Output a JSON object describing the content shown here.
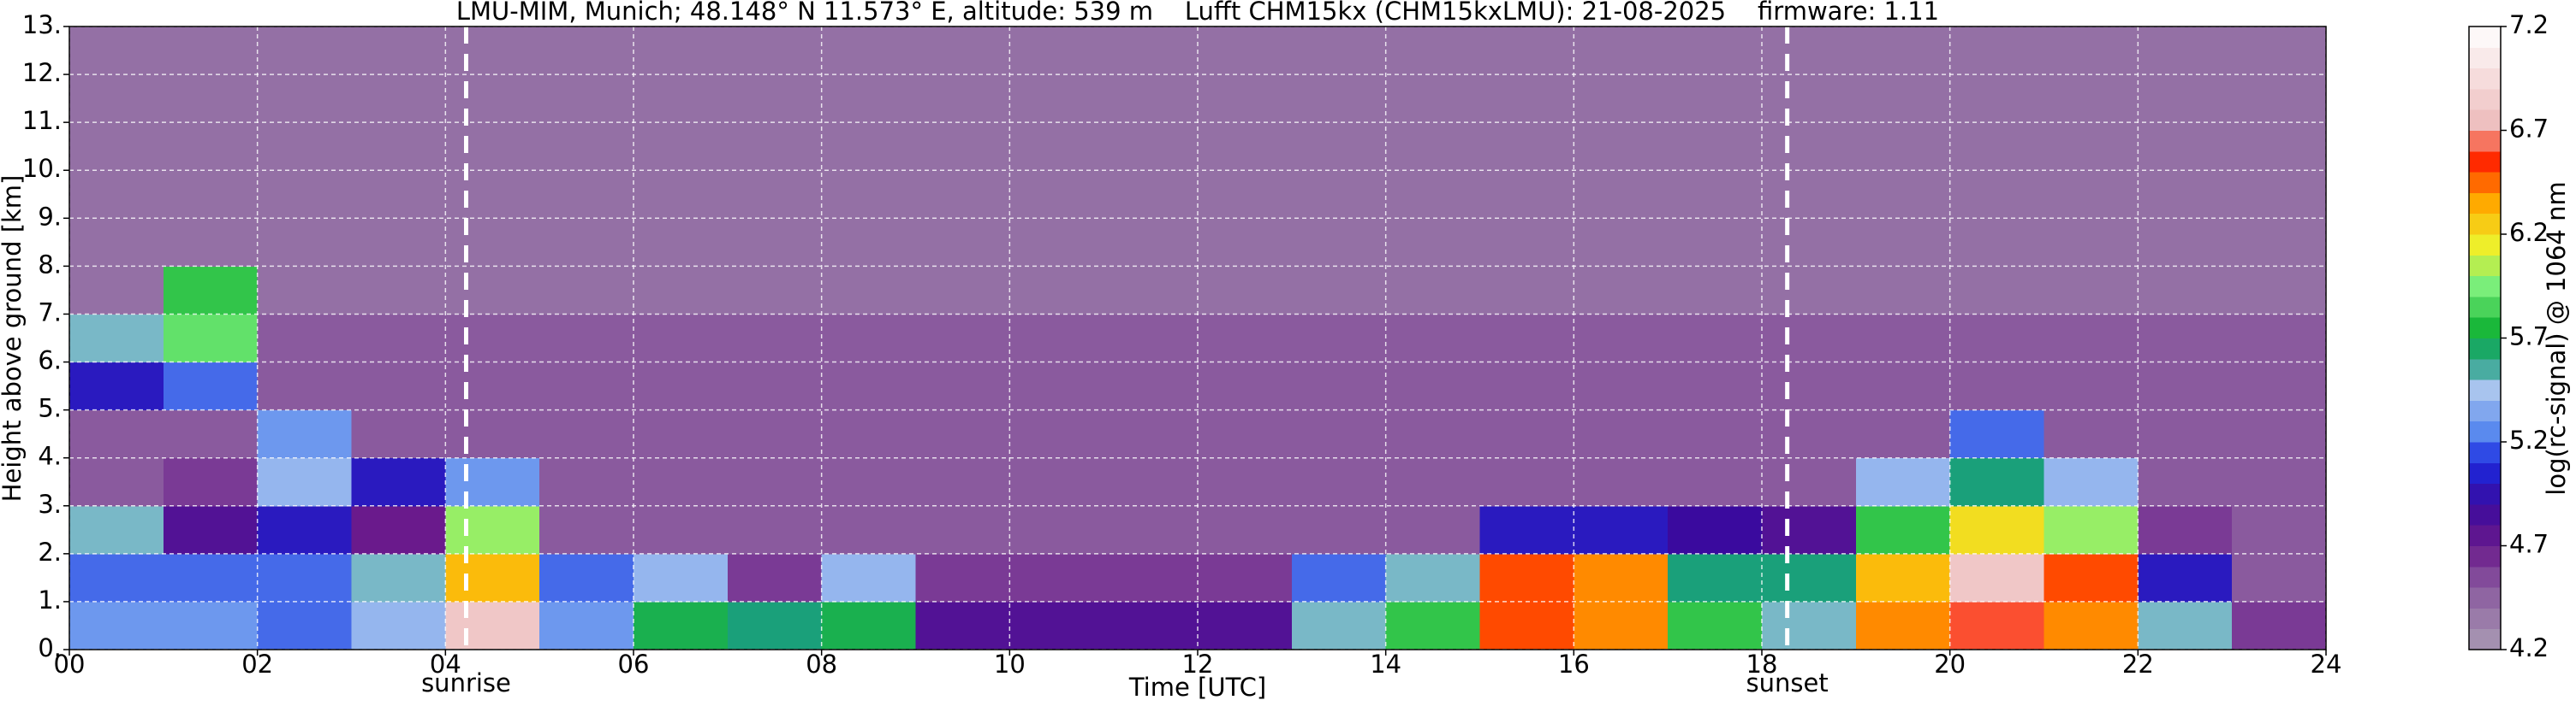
{
  "chart_data": {
    "type": "heatmap",
    "title": "LMU-MIM, Munich; 48.148° N 11.573° E, altitude: 539 m    Lufft CHM15kx (CHM15kxLMU): 21-08-2025    firmware: 1.11",
    "x_label": "Time [UTC]",
    "y_label": "Height above ground [km]",
    "colorbar_label": "log(rc-signal) @ 1064 nm",
    "xlim": [
      0,
      24
    ],
    "ylim": [
      0,
      13
    ],
    "zlim": [
      4.2,
      7.2
    ],
    "xticks": [
      {
        "value": 0,
        "label": "00"
      },
      {
        "value": 2,
        "label": "02"
      },
      {
        "value": 4,
        "label": "04"
      },
      {
        "value": 6,
        "label": "06"
      },
      {
        "value": 8,
        "label": "08"
      },
      10,
      12,
      14,
      16,
      18,
      20,
      22,
      24
    ],
    "yticks": [
      {
        "value": 0,
        "label": "0."
      },
      {
        "value": 1,
        "label": "1."
      },
      {
        "value": 2,
        "label": "2."
      },
      {
        "value": 3,
        "label": "3."
      },
      {
        "value": 4,
        "label": "4."
      },
      {
        "value": 5,
        "label": "5."
      },
      {
        "value": 6,
        "label": "6."
      },
      {
        "value": 7,
        "label": "7."
      },
      {
        "value": 8,
        "label": "8."
      },
      {
        "value": 9,
        "label": "9."
      },
      {
        "value": 10,
        "label": "10."
      },
      {
        "value": 11,
        "label": "11."
      },
      {
        "value": 12,
        "label": "12."
      },
      {
        "value": 13,
        "label": "13."
      }
    ],
    "zticks": [
      4.2,
      4.7,
      5.2,
      5.7,
      6.2,
      6.7,
      7.2
    ],
    "grid": true,
    "colorscale": [
      [
        4.2,
        "#a99bb3"
      ],
      [
        4.5,
        "#8a5a9e"
      ],
      [
        4.7,
        "#6a1a8c"
      ],
      [
        4.9,
        "#3a0a9e"
      ],
      [
        5.1,
        "#1a2ae0"
      ],
      [
        5.25,
        "#5a8aee"
      ],
      [
        5.45,
        "#a8c4ee"
      ],
      [
        5.6,
        "#1aa07a"
      ],
      [
        5.75,
        "#1ab83a"
      ],
      [
        5.95,
        "#7aee7a"
      ],
      [
        6.15,
        "#eeee2a"
      ],
      [
        6.35,
        "#ffaa00"
      ],
      [
        6.55,
        "#ff2a00"
      ],
      [
        6.75,
        "#eec0c0"
      ],
      [
        7.2,
        "#ffffff"
      ]
    ],
    "annotations": [
      {
        "text": "sunrise",
        "x": 4.22
      },
      {
        "text": "sunset",
        "x": 18.27
      }
    ],
    "z": [
      [
        5.3,
        5.3,
        5.2,
        5.4,
        6.8,
        5.3,
        5.7,
        5.6,
        5.7,
        4.8,
        4.8,
        4.8,
        4.8,
        5.5,
        5.8,
        6.5,
        6.4,
        5.8,
        5.5,
        6.4,
        6.6,
        6.4,
        5.5,
        4.6
      ],
      [
        5.2,
        5.2,
        5.2,
        5.5,
        6.3,
        5.2,
        5.4,
        4.6,
        5.4,
        4.6,
        4.6,
        4.6,
        4.6,
        5.2,
        5.5,
        6.5,
        6.4,
        5.6,
        5.6,
        6.3,
        6.8,
        6.5,
        5.0,
        4.5
      ],
      [
        5.5,
        4.8,
        5.0,
        4.7,
        6.0,
        4.5,
        4.5,
        4.5,
        4.5,
        4.5,
        4.5,
        4.5,
        4.5,
        4.5,
        4.5,
        5.0,
        5.0,
        4.9,
        4.8,
        5.8,
        6.2,
        6.0,
        4.6,
        4.5
      ],
      [
        4.5,
        4.6,
        5.4,
        5.0,
        5.3,
        4.5,
        4.5,
        4.5,
        4.5,
        4.5,
        4.5,
        4.5,
        4.5,
        4.5,
        4.5,
        4.5,
        4.5,
        4.5,
        4.5,
        5.4,
        5.6,
        5.4,
        4.5,
        4.5
      ],
      [
        4.5,
        4.5,
        5.3,
        4.5,
        4.5,
        4.5,
        4.5,
        4.5,
        4.5,
        4.5,
        4.5,
        4.5,
        4.5,
        4.5,
        4.5,
        4.5,
        4.5,
        4.5,
        4.5,
        4.5,
        5.2,
        4.5,
        4.5,
        4.5
      ],
      [
        5.0,
        5.2,
        4.5,
        4.5,
        4.5,
        4.5,
        4.5,
        4.5,
        4.5,
        4.5,
        4.5,
        4.5,
        4.5,
        4.5,
        4.5,
        4.5,
        4.5,
        4.5,
        4.5,
        4.5,
        4.5,
        4.5,
        4.5,
        4.5
      ],
      [
        5.5,
        5.9,
        4.5,
        4.5,
        4.5,
        4.5,
        4.5,
        4.5,
        4.5,
        4.5,
        4.5,
        4.5,
        4.5,
        4.5,
        4.5,
        4.5,
        4.5,
        4.5,
        4.5,
        4.5,
        4.5,
        4.5,
        4.5,
        4.5
      ],
      [
        4.4,
        5.8,
        4.4,
        4.4,
        4.4,
        4.4,
        4.4,
        4.4,
        4.4,
        4.4,
        4.4,
        4.4,
        4.4,
        4.4,
        4.4,
        4.4,
        4.4,
        4.4,
        4.4,
        4.4,
        4.4,
        4.4,
        4.4,
        4.4
      ],
      [
        4.4,
        4.4,
        4.4,
        4.4,
        4.4,
        4.4,
        4.4,
        4.4,
        4.4,
        4.4,
        4.4,
        4.4,
        4.4,
        4.4,
        4.4,
        4.4,
        4.4,
        4.4,
        4.4,
        4.4,
        4.4,
        4.4,
        4.4,
        4.4
      ],
      [
        4.4,
        4.4,
        4.4,
        4.4,
        4.4,
        4.4,
        4.4,
        4.4,
        4.4,
        4.4,
        4.4,
        4.4,
        4.4,
        4.4,
        4.4,
        4.4,
        4.4,
        4.4,
        4.4,
        4.4,
        4.4,
        4.4,
        4.4,
        4.4
      ],
      [
        4.4,
        4.4,
        4.4,
        4.4,
        4.4,
        4.4,
        4.4,
        4.4,
        4.4,
        4.4,
        4.4,
        4.4,
        4.4,
        4.4,
        4.4,
        4.4,
        4.4,
        4.4,
        4.4,
        4.4,
        4.4,
        4.4,
        4.4,
        4.4
      ],
      [
        4.4,
        4.4,
        4.4,
        4.4,
        4.4,
        4.4,
        4.4,
        4.4,
        4.4,
        4.4,
        4.4,
        4.4,
        4.4,
        4.4,
        4.4,
        4.4,
        4.4,
        4.4,
        4.4,
        4.4,
        4.4,
        4.4,
        4.4,
        4.4
      ],
      [
        4.4,
        4.4,
        4.4,
        4.4,
        4.4,
        4.4,
        4.4,
        4.4,
        4.4,
        4.4,
        4.4,
        4.4,
        4.4,
        4.4,
        4.4,
        4.4,
        4.4,
        4.4,
        4.4,
        4.4,
        4.4,
        4.4,
        4.4,
        4.4
      ]
    ]
  }
}
